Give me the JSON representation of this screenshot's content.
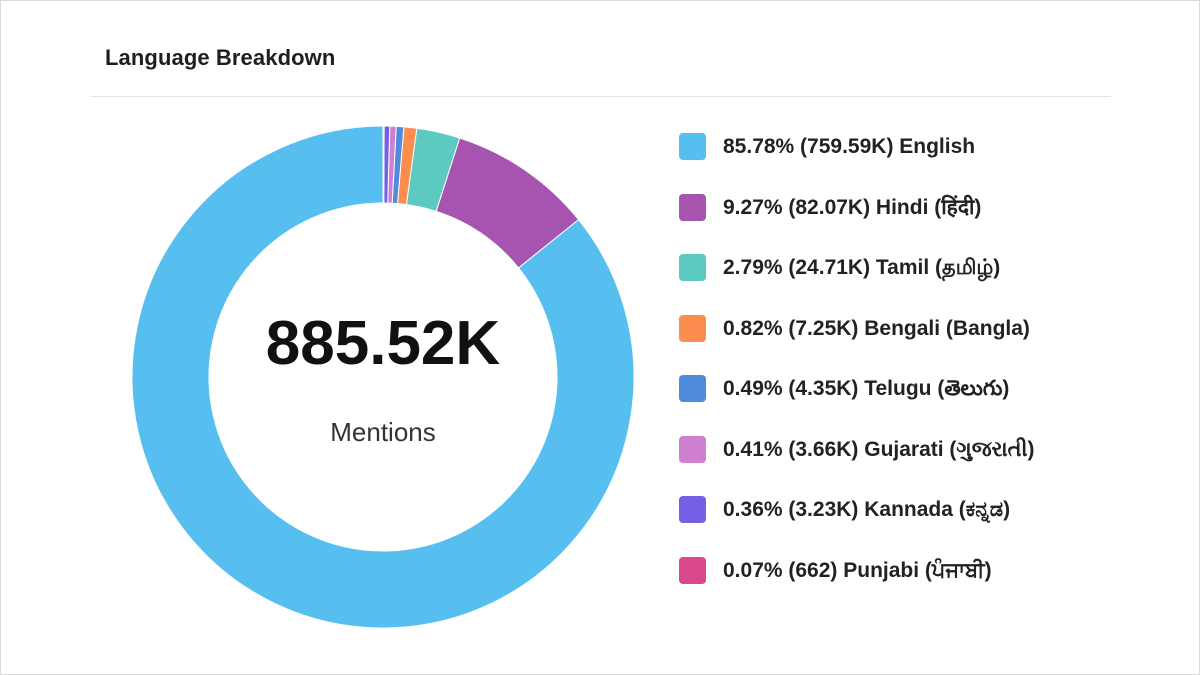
{
  "card": {
    "title": "Language Breakdown"
  },
  "center": {
    "value": "885.52K",
    "label": "Mentions"
  },
  "chart_data": {
    "type": "pie",
    "donut": true,
    "title": "Language Breakdown",
    "total": "885.52K",
    "legend_position": "right",
    "categories": [
      "English",
      "Hindi (हिंदी)",
      "Tamil (தமிழ்)",
      "Bengali (Bangla)",
      "Telugu (తెలుగు)",
      "Gujarati (ગુજરાતી)",
      "Kannada (ಕನ್ನಡ)",
      "Punjabi (ਪੰਜਾਬੀ)"
    ],
    "values": [
      85.78,
      9.27,
      2.79,
      0.82,
      0.49,
      0.41,
      0.36,
      0.07
    ],
    "legend": [
      {
        "label": "85.78% (759.59K) English",
        "color": "#57bfef"
      },
      {
        "label": "9.27% (82.07K) Hindi (हिंदी)",
        "color": "#a754b1"
      },
      {
        "label": "2.79% (24.71K) Tamil (தமிழ்)",
        "color": "#5ccac0"
      },
      {
        "label": "0.82% (7.25K) Bengali (Bangla)",
        "color": "#fb8d4f"
      },
      {
        "label": "0.49% (4.35K) Telugu (తెలుగు)",
        "color": "#4f8ddc"
      },
      {
        "label": "0.41% (3.66K) Gujarati (ગુજરાતી)",
        "color": "#cf7fd0"
      },
      {
        "label": "0.36% (3.23K) Kannada (ಕನ್ನಡ)",
        "color": "#7360e4"
      },
      {
        "label": "0.07% (662) Punjabi (ਪੰਜਾਬੀ)",
        "color": "#d9498b"
      }
    ]
  }
}
